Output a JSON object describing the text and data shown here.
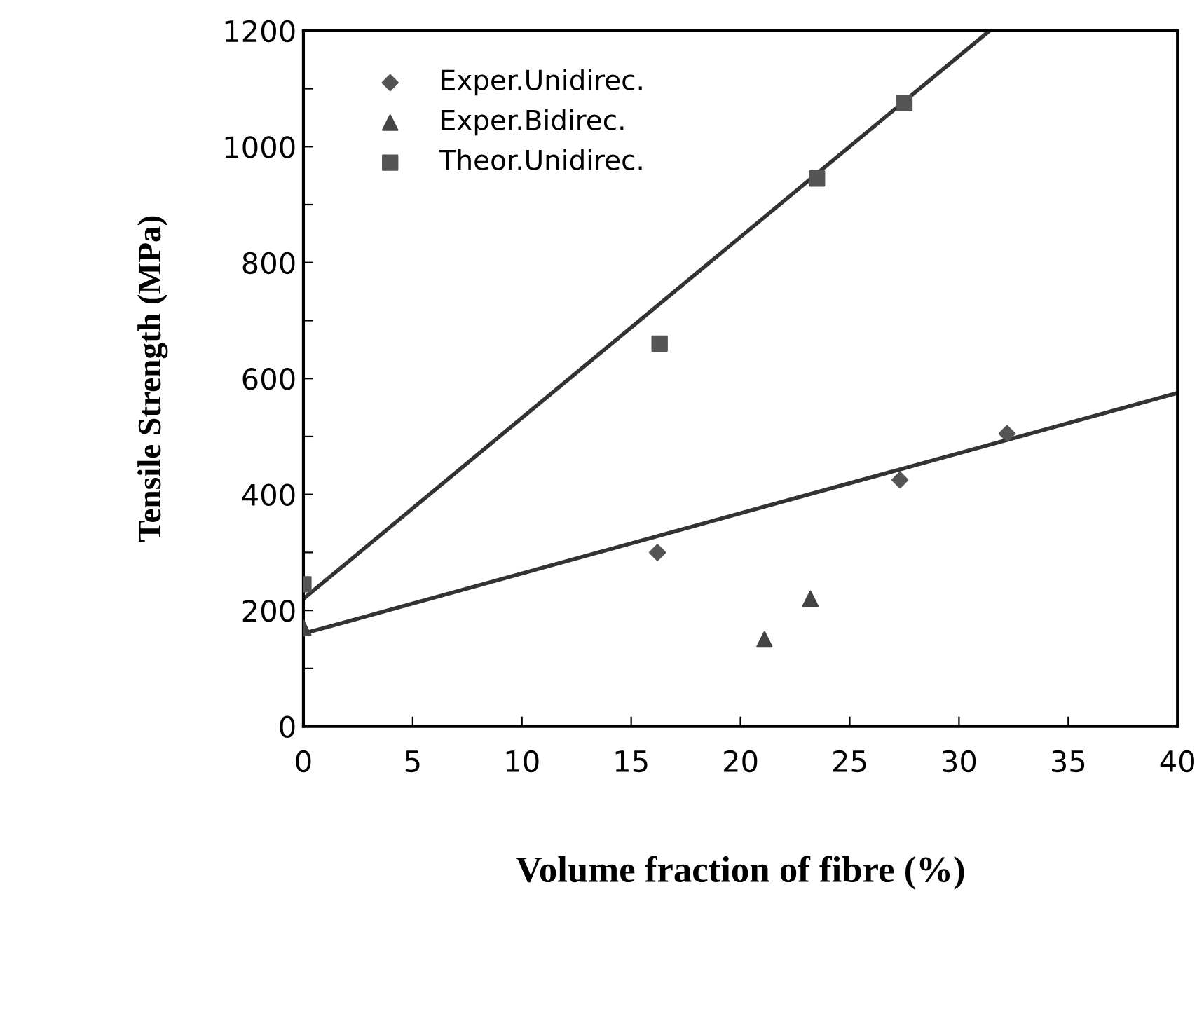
{
  "chart_data": {
    "type": "scatter",
    "xlabel": "Volume fraction of fibre (%)",
    "ylabel": "Tensile Strength (MPa)",
    "xlim": [
      0,
      40
    ],
    "ylim": [
      0,
      1200
    ],
    "xticks": [
      0,
      5,
      10,
      15,
      20,
      25,
      30,
      35,
      40
    ],
    "yticks": [
      0,
      {
        "value": 100,
        "label": null
      },
      200,
      {
        "value": 300,
        "label": null
      },
      400,
      {
        "value": 500,
        "label": null
      },
      600,
      {
        "value": 700,
        "label": null
      },
      800,
      {
        "value": 900,
        "label": null
      },
      1000,
      {
        "value": 1100,
        "label": null
      },
      1200
    ],
    "legend": "top left",
    "grid": false,
    "series": [
      {
        "name": "Exper.Unidirec.",
        "color": "#555555",
        "marker": "diamond",
        "x": [
          16.2,
          27.3,
          32.2
        ],
        "values": [
          300,
          425,
          505
        ]
      },
      {
        "name": "Exper.Bidirec.",
        "color": "#444444",
        "marker": "triangle",
        "x": [
          0,
          21.1,
          23.2
        ],
        "values": [
          170,
          150,
          220
        ]
      },
      {
        "name": "Theor.Unidirec.",
        "color": "#555555",
        "marker": "square",
        "x": [
          0,
          16.3,
          23.5,
          27.5
        ],
        "values": [
          245,
          660,
          945,
          1075
        ]
      },
      {
        "type": "line",
        "color": "#333333",
        "line_style": "solid",
        "x": [
          0,
          31.4
        ],
        "values": [
          220,
          1200
        ]
      },
      {
        "type": "line",
        "color": "#333333",
        "line_style": "solid",
        "x": [
          0,
          40
        ],
        "values": [
          160,
          575
        ]
      }
    ]
  }
}
